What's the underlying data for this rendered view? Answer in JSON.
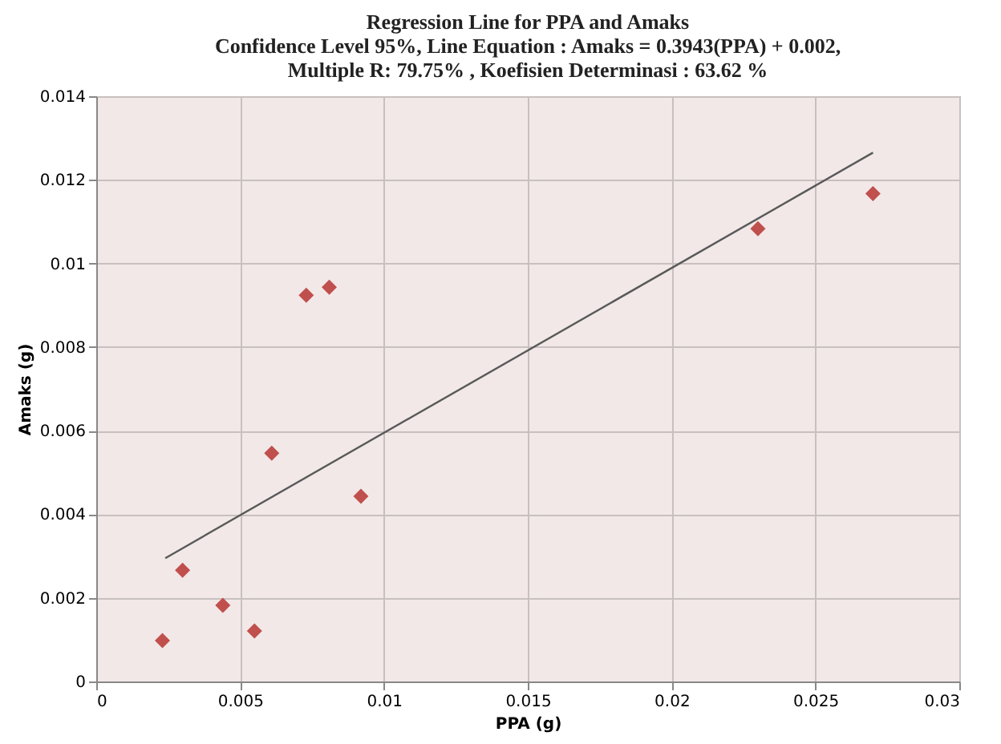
{
  "chart_data": {
    "type": "scatter",
    "title": [
      "Regression Line for PPA and Amaks",
      "Confidence Level 95%, Line Equation : Amaks = 0.3943(PPA) + 0.002,",
      "Multiple R: 79.75% , Koefisien Determinasi : 63.62 %"
    ],
    "xlabel": "PPA (g)",
    "ylabel": "Amaks (g)",
    "xlim": [
      0,
      0.03
    ],
    "ylim": [
      0,
      0.014
    ],
    "xticks": [
      0,
      0.005,
      0.01,
      0.015,
      0.02,
      0.025,
      0.03
    ],
    "yticks": [
      0,
      0.002,
      0.004,
      0.006,
      0.008,
      0.01,
      0.012,
      0.014
    ],
    "grid": true,
    "legend": false,
    "series": [
      {
        "color": "#c0504d",
        "marker": "diamond",
        "x": [
          0.0023,
          0.003,
          0.0044,
          0.0055,
          0.0061,
          0.0073,
          0.0081,
          0.0092,
          0.023,
          0.027
        ],
        "values": [
          0.00098,
          0.00266,
          0.00182,
          0.00121,
          0.00546,
          0.00924,
          0.00943,
          0.00443,
          0.01083,
          0.01167
        ]
      },
      {
        "type": "line",
        "color": "#595959",
        "line_style": "solid",
        "marker": "none",
        "x": [
          0.0024,
          0.027
        ],
        "values": [
          0.00295,
          0.01265
        ]
      }
    ]
  }
}
